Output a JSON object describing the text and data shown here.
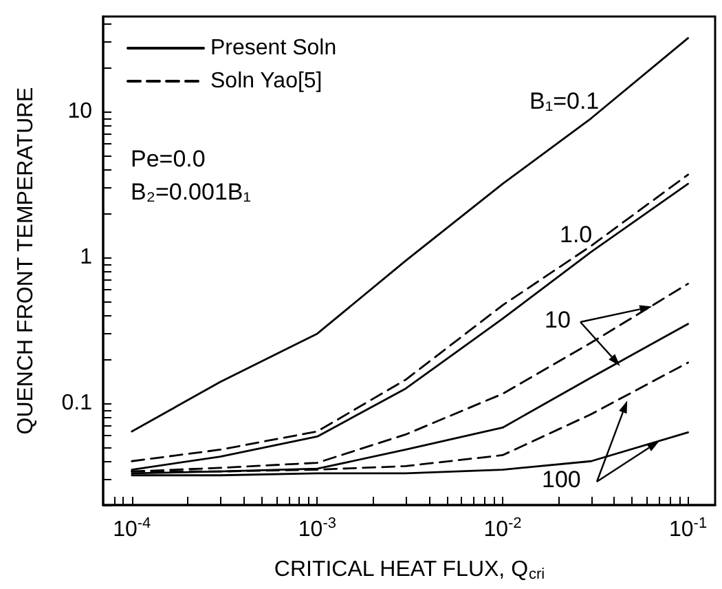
{
  "chart_data": {
    "type": "line",
    "xlabel": "CRITICAL HEAT FLUX, Q$_{cri}$",
    "ylabel": "QUENCH FRONT TEMPERATURE",
    "x": [
      0.0001,
      0.0003,
      0.001,
      0.003,
      0.01,
      0.03,
      0.1
    ],
    "series": [
      {
        "name": "Present Soln",
        "color": "#000000",
        "line_style": "solid",
        "values": [
          0.064,
          0.14,
          0.3,
          0.95,
          3.2,
          9,
          32
        ]
      },
      {
        "name": "Soln Yao[5]",
        "color": "#000000",
        "line_style": "dashed",
        "values": [
          0.04,
          0.048,
          0.064,
          0.145,
          0.47,
          1.2,
          3.7
        ]
      },
      {
        "color": "#000000",
        "line_style": "solid",
        "values": [
          0.035,
          0.043,
          0.059,
          0.126,
          0.38,
          1.09,
          3.2
        ]
      },
      {
        "color": "#000000",
        "line_style": "dashed",
        "values": [
          0.034,
          0.036,
          0.039,
          0.061,
          0.116,
          0.26,
          0.66
        ]
      },
      {
        "color": "#000000",
        "line_style": "solid",
        "values": [
          0.033,
          0.034,
          0.0355,
          0.048,
          0.068,
          0.15,
          0.35
        ]
      },
      {
        "color": "#000000",
        "line_style": "dashed",
        "values": [
          0.034,
          0.034,
          0.035,
          0.037,
          0.044,
          0.084,
          0.19
        ]
      },
      {
        "color": "#000000",
        "line_style": "solid",
        "values": [
          0.032,
          0.032,
          0.033,
          0.033,
          0.035,
          0.04,
          0.063
        ]
      }
    ],
    "annotations": [
      "B₁=0.1",
      "1.0",
      {
        "text": "10",
        "x": 0.064,
        "y": 0.46
      },
      {
        "text": "100",
        "x": 0.07,
        "y": 0.055
      },
      "Pe=0.0",
      "B₂=0.001B₁"
    ],
    "log": "xy",
    "xlim": [
      7e-05,
      0.14
    ],
    "ylim": [
      0.02,
      45
    ],
    "xticks": [
      {
        "value": 8e-05,
        "label": null
      },
      {
        "value": 9e-05,
        "label": null
      },
      {
        "value": 0.0001,
        "label": "10$^{-4}$"
      },
      {
        "value": 0.0002,
        "label": null
      },
      {
        "value": 0.0003,
        "label": null
      },
      {
        "value": 0.0004,
        "label": null
      },
      {
        "value": 0.0005,
        "label": null
      },
      {
        "value": 0.0006,
        "label": null
      },
      {
        "value": 0.0007,
        "label": null
      },
      {
        "value": 0.0008,
        "label": null
      },
      {
        "value": 0.0009,
        "label": null
      },
      {
        "value": 0.001,
        "label": "10$^{-3}$"
      },
      {
        "value": 0.002,
        "label": null
      },
      {
        "value": 0.003,
        "label": null
      },
      {
        "value": 0.004,
        "label": null
      },
      {
        "value": 0.005,
        "label": null
      },
      {
        "value": 0.006,
        "label": null
      },
      {
        "value": 0.007,
        "label": null
      },
      {
        "value": 0.008,
        "label": null
      },
      {
        "value": 0.009,
        "label": null
      },
      {
        "value": 0.01,
        "label": "10$^{-2}$"
      },
      {
        "value": 0.02,
        "label": null
      },
      {
        "value": 0.03,
        "label": null
      },
      {
        "value": 0.04,
        "label": null
      },
      {
        "value": 0.05,
        "label": null
      },
      {
        "value": 0.06,
        "label": null
      },
      {
        "value": 0.07,
        "label": null
      },
      {
        "value": 0.08,
        "label": null
      },
      {
        "value": 0.09,
        "label": null
      },
      {
        "value": 0.1,
        "label": "10$^{-1}$"
      }
    ],
    "yticks": [
      {
        "value": 0.02,
        "label": null
      },
      {
        "value": 0.03,
        "label": null
      },
      {
        "value": 0.04,
        "label": null
      },
      {
        "value": 0.05,
        "label": null
      },
      {
        "value": 0.06,
        "label": null
      },
      {
        "value": 0.07,
        "label": null
      },
      {
        "value": 0.08,
        "label": null
      },
      {
        "value": 0.09,
        "label": null
      },
      0.1,
      {
        "value": 0.2,
        "label": null
      },
      {
        "value": 0.3,
        "label": null
      },
      {
        "value": 0.4,
        "label": null
      },
      {
        "value": 0.5,
        "label": null
      },
      {
        "value": 0.6,
        "label": null
      },
      {
        "value": 0.7,
        "label": null
      },
      {
        "value": 0.8,
        "label": null
      },
      {
        "value": 0.9,
        "label": null
      },
      1,
      {
        "value": 2,
        "label": null
      },
      {
        "value": 3,
        "label": null
      },
      {
        "value": 4,
        "label": null
      },
      {
        "value": 5,
        "label": null
      },
      {
        "value": 6,
        "label": null
      },
      {
        "value": 7,
        "label": null
      },
      {
        "value": 8,
        "label": null
      },
      {
        "value": 9,
        "label": null
      },
      10,
      {
        "value": 20,
        "label": null
      },
      {
        "value": 30,
        "label": null
      },
      {
        "value": 40,
        "label": null
      }
    ],
    "grid": false,
    "legend": "top left",
    "marker": "none"
  }
}
